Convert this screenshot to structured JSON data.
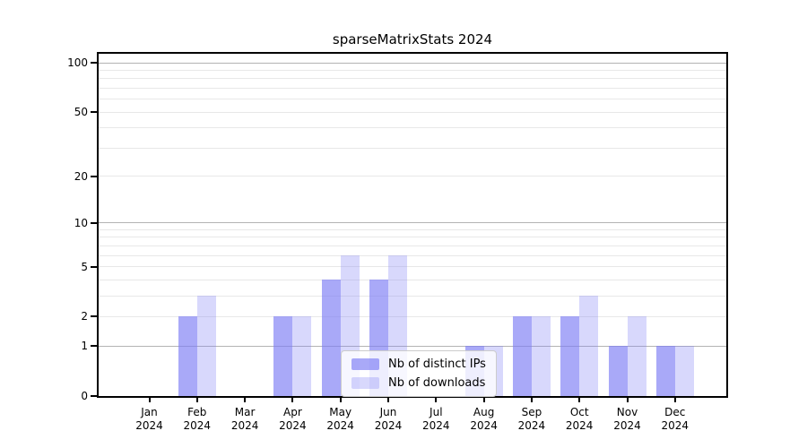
{
  "figure": {
    "background": "#ffffff"
  },
  "chart_data": {
    "type": "bar",
    "title": "sparseMatrixStats 2024",
    "categories": [
      "Jan",
      "Feb",
      "Mar",
      "Apr",
      "May",
      "Jun",
      "Jul",
      "Aug",
      "Sep",
      "Oct",
      "Nov",
      "Dec"
    ],
    "category_year": "2024",
    "series": [
      {
        "name": "Nb of distinct IPs",
        "fill": "rgba(125,125,245,0.66)",
        "color_hex_over_white": "#aaaaf8",
        "values": [
          0,
          2,
          0,
          2,
          4,
          4,
          0,
          1,
          2,
          2,
          1,
          1
        ]
      },
      {
        "name": "Nb of downloads",
        "fill": "rgba(125,125,245,0.30)",
        "color_hex_over_white": "#d8d8fc",
        "values": [
          0,
          3,
          0,
          2,
          6,
          6,
          0,
          1,
          2,
          3,
          2,
          1
        ]
      }
    ],
    "yscale": "log1p",
    "ylim": [
      0,
      100
    ],
    "yticks": [
      0,
      1,
      2,
      5,
      10,
      20,
      50,
      100
    ],
    "gridlines": {
      "major": [
        1,
        10,
        100
      ],
      "minor": [
        2,
        3,
        4,
        5,
        6,
        7,
        8,
        9,
        20,
        30,
        40,
        50,
        60,
        70,
        80,
        90
      ]
    },
    "xlabel": "",
    "ylabel": "",
    "grid": true,
    "legend_position": "lower center"
  },
  "colors": {
    "major_grid": "#b3b3b3",
    "minor_grid": "#e8e8e8",
    "axis": "#000000",
    "background": "#ffffff"
  }
}
